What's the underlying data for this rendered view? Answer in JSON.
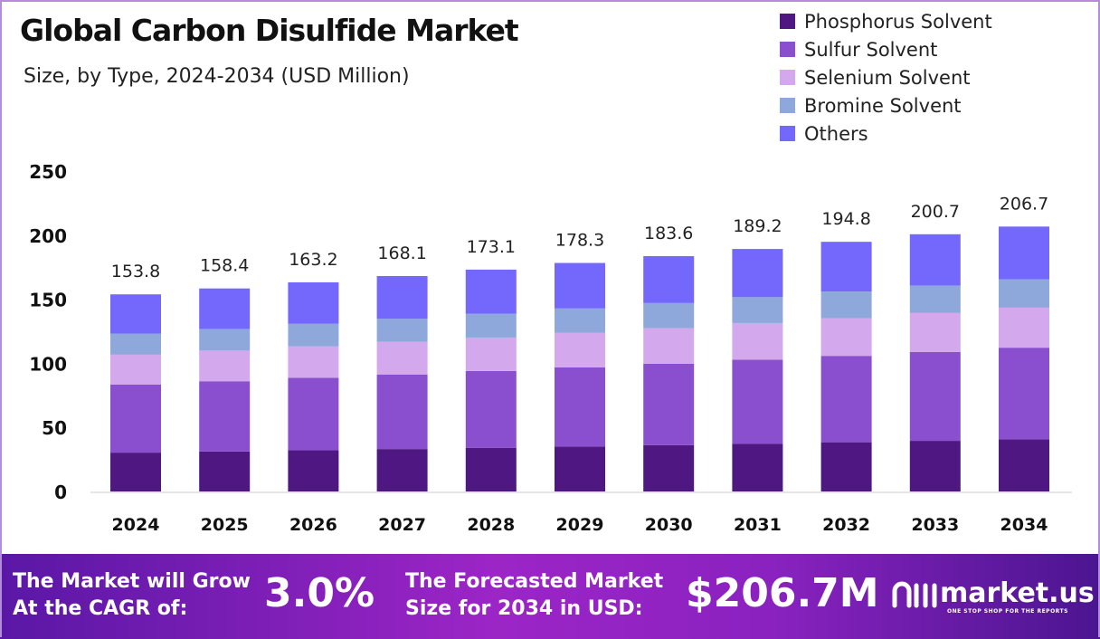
{
  "chart_data": {
    "type": "bar",
    "stacked": true,
    "title": "Global Carbon Disulfide Market",
    "subtitle": "Size, by Type, 2024-2034 (USD Million)",
    "categories": [
      "2024",
      "2025",
      "2026",
      "2027",
      "2028",
      "2029",
      "2030",
      "2031",
      "2032",
      "2033",
      "2034"
    ],
    "totals": [
      "153.8",
      "158.4",
      "163.2",
      "168.1",
      "173.1",
      "178.3",
      "183.6",
      "189.2",
      "194.8",
      "200.7",
      "206.7"
    ],
    "series": [
      {
        "name": "Phosphorus Solvent",
        "color": "#4e1782",
        "values": [
          30.3,
          31.2,
          32.2,
          33.1,
          34.1,
          35.1,
          36.2,
          37.3,
          38.4,
          39.5,
          40.7
        ]
      },
      {
        "name": "Sulfur Solvent",
        "color": "#8a4fcf",
        "values": [
          53.2,
          54.8,
          56.5,
          58.2,
          59.9,
          61.7,
          63.5,
          65.5,
          67.4,
          69.4,
          71.5
        ]
      },
      {
        "name": "Selenium Solvent",
        "color": "#d3a8ec",
        "values": [
          23.2,
          23.9,
          24.6,
          25.4,
          26.1,
          26.9,
          27.7,
          28.6,
          29.4,
          30.3,
          31.2
        ]
      },
      {
        "name": "Bromine Solvent",
        "color": "#8ea8dc",
        "values": [
          16.5,
          16.9,
          17.5,
          18.0,
          18.5,
          19.1,
          19.6,
          20.2,
          20.8,
          21.5,
          22.1
        ]
      },
      {
        "name": "Others",
        "color": "#7468fc",
        "values": [
          30.6,
          31.6,
          32.4,
          33.4,
          34.5,
          35.5,
          36.6,
          37.6,
          38.8,
          40.0,
          41.2
        ]
      }
    ],
    "yticks": [
      "0",
      "50",
      "100",
      "150",
      "200",
      "250"
    ],
    "ylim": [
      0,
      250
    ],
    "grid": false,
    "legend": "top-right"
  },
  "footer": {
    "cagr_label_1": "The Market will Grow",
    "cagr_label_2": "At the CAGR of:",
    "cagr_value": "3.0%",
    "forecast_label_1": "The Forecasted Market",
    "forecast_label_2": "Size for 2034 in USD:",
    "forecast_value": "$206.7M",
    "brand": "market.us",
    "tagline": "ONE STOP SHOP FOR THE REPORTS"
  }
}
